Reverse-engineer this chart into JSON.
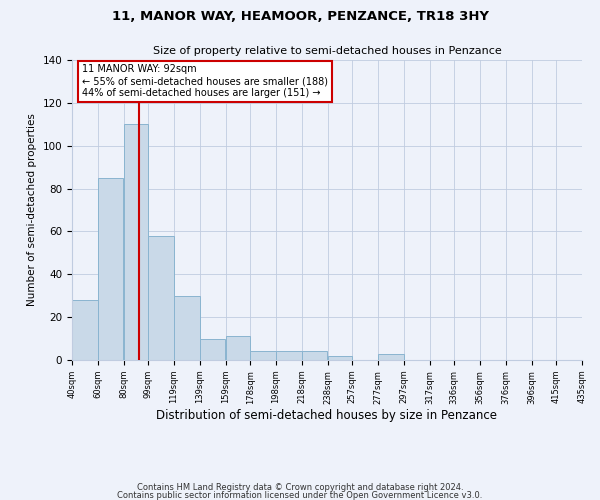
{
  "title": "11, MANOR WAY, HEAMOOR, PENZANCE, TR18 3HY",
  "subtitle": "Size of property relative to semi-detached houses in Penzance",
  "xlabel": "Distribution of semi-detached houses by size in Penzance",
  "ylabel": "Number of semi-detached properties",
  "bar_color": "#c9d9e8",
  "bar_edge_color": "#8ab4d0",
  "bins": [
    40,
    60,
    80,
    99,
    119,
    139,
    159,
    178,
    198,
    218,
    238,
    257,
    277,
    297,
    317,
    336,
    356,
    376,
    396,
    415,
    435
  ],
  "counts": [
    28,
    85,
    110,
    58,
    30,
    10,
    11,
    4,
    4,
    4,
    2,
    0,
    3,
    0,
    0,
    0,
    0,
    0,
    0,
    0
  ],
  "property_size": 92,
  "vline_color": "#cc0000",
  "annotation_line1": "11 MANOR WAY: 92sqm",
  "annotation_line2": "← 55% of semi-detached houses are smaller (188)",
  "annotation_line3": "44% of semi-detached houses are larger (151) →",
  "annotation_box_color": "#ffffff",
  "annotation_box_edge": "#cc0000",
  "ylim": [
    0,
    140
  ],
  "footnote1": "Contains HM Land Registry data © Crown copyright and database right 2024.",
  "footnote2": "Contains public sector information licensed under the Open Government Licence v3.0.",
  "tick_labels": [
    "40sqm",
    "60sqm",
    "80sqm",
    "99sqm",
    "119sqm",
    "139sqm",
    "159sqm",
    "178sqm",
    "198sqm",
    "218sqm",
    "238sqm",
    "257sqm",
    "277sqm",
    "297sqm",
    "317sqm",
    "336sqm",
    "356sqm",
    "376sqm",
    "396sqm",
    "415sqm",
    "435sqm"
  ],
  "background_color": "#eef2fa"
}
